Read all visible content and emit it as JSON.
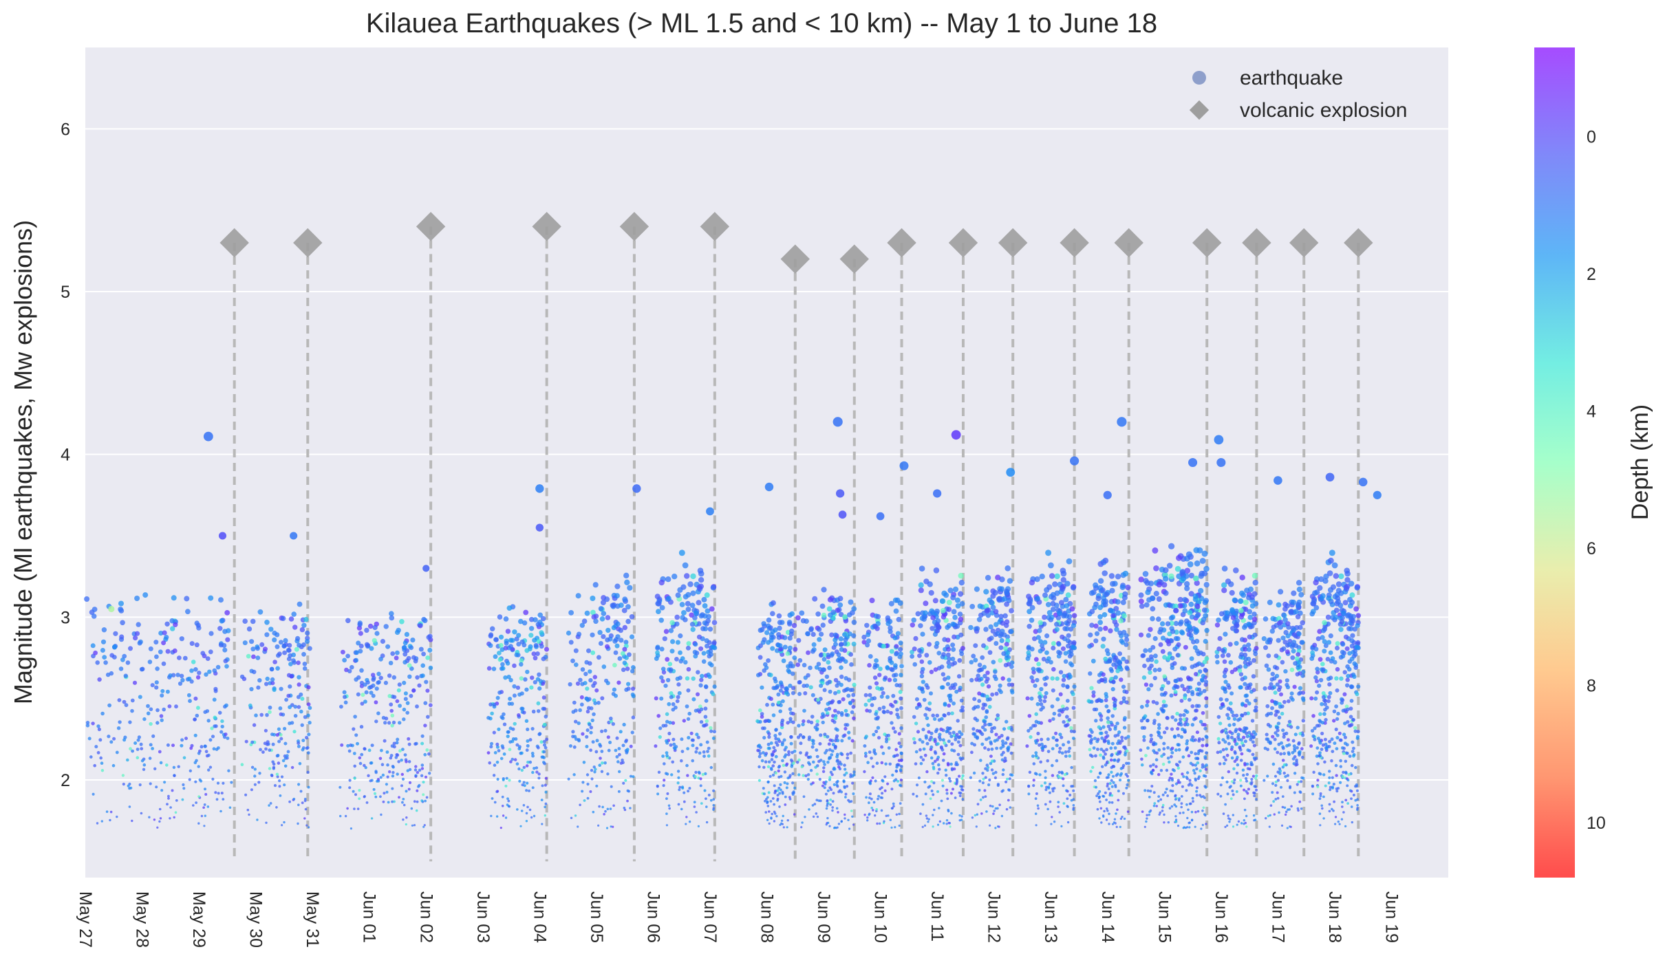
{
  "chart_data": {
    "type": "scatter",
    "title": "Kilauea Earthquakes (> ML 1.5 and < 10 km) -- May 1 to June 18",
    "xlabel": "",
    "ylabel": "Magnitude (Ml earthquakes, Mw explosions)",
    "xlim": [
      "2018-05-27",
      "2018-06-20"
    ],
    "ylim": [
      1.4,
      6.5
    ],
    "x_tick_labels": [
      "May 27",
      "May 28",
      "May 29",
      "May 30",
      "May 31",
      "Jun 01",
      "Jun 02",
      "Jun 03",
      "Jun 04",
      "Jun 05",
      "Jun 06",
      "Jun 07",
      "Jun 08",
      "Jun 09",
      "Jun 10",
      "Jun 11",
      "Jun 12",
      "Jun 13",
      "Jun 14",
      "Jun 15",
      "Jun 16",
      "Jun 17",
      "Jun 18",
      "Jun 19"
    ],
    "y_ticks": [
      2,
      3,
      4,
      5,
      6
    ],
    "grid": true,
    "legend_position": "top-right",
    "legend": [
      {
        "label": "earthquake",
        "marker": "circle"
      },
      {
        "label": "volcanic explosion",
        "marker": "diamond"
      }
    ],
    "colorbar": {
      "label": "Depth (km)",
      "ticks": [
        0,
        2,
        4,
        6,
        8,
        10
      ],
      "range": [
        -1.3,
        10.8
      ],
      "reversed": true,
      "colormap": "rainbow"
    },
    "explosions": [
      {
        "x": "2018-05-29 15:00",
        "mag": 5.3
      },
      {
        "x": "2018-05-30 22:00",
        "mag": 5.3
      },
      {
        "x": "2018-06-02 02:00",
        "mag": 5.4
      },
      {
        "x": "2018-06-04 03:00",
        "mag": 5.4
      },
      {
        "x": "2018-06-05 16:00",
        "mag": 5.4
      },
      {
        "x": "2018-06-07 02:00",
        "mag": 5.4
      },
      {
        "x": "2018-06-08 12:00",
        "mag": 5.2
      },
      {
        "x": "2018-06-09 13:00",
        "mag": 5.2
      },
      {
        "x": "2018-06-10 09:00",
        "mag": 5.3
      },
      {
        "x": "2018-06-11 11:00",
        "mag": 5.3
      },
      {
        "x": "2018-06-12 08:00",
        "mag": 5.3
      },
      {
        "x": "2018-06-13 10:00",
        "mag": 5.3
      },
      {
        "x": "2018-06-14 09:00",
        "mag": 5.3
      },
      {
        "x": "2018-06-15 18:00",
        "mag": 5.3
      },
      {
        "x": "2018-06-16 15:00",
        "mag": 5.3
      },
      {
        "x": "2018-06-17 11:00",
        "mag": 5.3
      },
      {
        "x": "2018-06-18 10:00",
        "mag": 5.3
      }
    ],
    "earthquakes": [
      {
        "x": "2018-05-29 04:00",
        "mag": 4.11,
        "depth": 0.9
      },
      {
        "x": "2018-05-29 10:00",
        "mag": 3.5,
        "depth": 0.1
      },
      {
        "x": "2018-05-30 16:00",
        "mag": 3.5,
        "depth": 1.0
      },
      {
        "x": "2018-05-27 11:00",
        "mag": 3.05,
        "depth": 5.5
      },
      {
        "x": "2018-06-02 00:00",
        "mag": 3.3,
        "depth": 0.5
      },
      {
        "x": "2018-06-04 00:00",
        "mag": 3.79,
        "depth": 1.2
      },
      {
        "x": "2018-06-05 17:00",
        "mag": 3.79,
        "depth": 0.7
      },
      {
        "x": "2018-06-04 00:00",
        "mag": 3.55,
        "depth": 0.3
      },
      {
        "x": "2018-06-07 00:00",
        "mag": 3.65,
        "depth": 1.2
      },
      {
        "x": "2018-06-08 01:00",
        "mag": 3.8,
        "depth": 1.1
      },
      {
        "x": "2018-06-09 06:00",
        "mag": 4.2,
        "depth": 0.9
      },
      {
        "x": "2018-06-09 07:00",
        "mag": 3.76,
        "depth": 0.3
      },
      {
        "x": "2018-06-09 08:00",
        "mag": 3.63,
        "depth": 0.2
      },
      {
        "x": "2018-06-10 10:00",
        "mag": 3.93,
        "depth": 1.0
      },
      {
        "x": "2018-06-10 00:00",
        "mag": 3.62,
        "depth": 0.8
      },
      {
        "x": "2018-06-11 08:00",
        "mag": 4.12,
        "depth": -0.3
      },
      {
        "x": "2018-06-11 00:00",
        "mag": 3.76,
        "depth": 0.8
      },
      {
        "x": "2018-06-12 07:00",
        "mag": 3.89,
        "depth": 1.5
      },
      {
        "x": "2018-06-13 10:00",
        "mag": 3.96,
        "depth": 0.9
      },
      {
        "x": "2018-06-14 06:00",
        "mag": 4.2,
        "depth": 1.0
      },
      {
        "x": "2018-06-14 00:00",
        "mag": 3.75,
        "depth": 0.8
      },
      {
        "x": "2018-06-15 12:00",
        "mag": 3.95,
        "depth": 0.9
      },
      {
        "x": "2018-06-15 23:00",
        "mag": 4.09,
        "depth": 1.1
      },
      {
        "x": "2018-06-16 00:00",
        "mag": 3.95,
        "depth": 0.9
      },
      {
        "x": "2018-06-17 00:00",
        "mag": 3.84,
        "depth": 1.0
      },
      {
        "x": "2018-06-17 22:00",
        "mag": 3.86,
        "depth": 0.6
      },
      {
        "x": "2018-06-18 12:00",
        "mag": 3.83,
        "depth": 0.9
      },
      {
        "x": "2018-06-18 18:00",
        "mag": 3.75,
        "depth": 1.1
      }
    ],
    "earthquake_clusters": [
      {
        "x_start": "2018-05-27 00:00",
        "x_end": "2018-05-29 14:00",
        "mag_min": 1.7,
        "mag_max": 3.35,
        "depth": 1.0,
        "count": 320
      },
      {
        "x_start": "2018-05-29 18:00",
        "x_end": "2018-05-30 23:00",
        "mag_min": 1.7,
        "mag_max": 3.25,
        "depth": 1.0,
        "count": 220
      },
      {
        "x_start": "2018-05-31 10:00",
        "x_end": "2018-06-02 02:00",
        "mag_min": 1.7,
        "mag_max": 3.2,
        "depth": 1.0,
        "count": 300
      },
      {
        "x_start": "2018-06-03 02:00",
        "x_end": "2018-06-04 03:00",
        "mag_min": 1.7,
        "mag_max": 3.25,
        "depth": 1.2,
        "count": 260
      },
      {
        "x_start": "2018-06-04 12:00",
        "x_end": "2018-06-05 16:00",
        "mag_min": 1.7,
        "mag_max": 3.45,
        "depth": 1.1,
        "count": 240
      },
      {
        "x_start": "2018-06-06 01:00",
        "x_end": "2018-06-07 02:00",
        "mag_min": 1.7,
        "mag_max": 3.6,
        "depth": 1.1,
        "count": 300
      },
      {
        "x_start": "2018-06-07 20:00",
        "x_end": "2018-06-08 12:00",
        "mag_min": 1.7,
        "mag_max": 3.3,
        "depth": 1.0,
        "count": 280
      },
      {
        "x_start": "2018-06-08 13:00",
        "x_end": "2018-06-09 13:00",
        "mag_min": 1.7,
        "mag_max": 3.35,
        "depth": 1.0,
        "count": 380
      },
      {
        "x_start": "2018-06-09 17:00",
        "x_end": "2018-06-10 09:00",
        "mag_min": 1.7,
        "mag_max": 3.3,
        "depth": 1.0,
        "count": 230
      },
      {
        "x_start": "2018-06-10 13:00",
        "x_end": "2018-06-11 11:00",
        "mag_min": 1.7,
        "mag_max": 3.5,
        "depth": 1.0,
        "count": 340
      },
      {
        "x_start": "2018-06-11 14:00",
        "x_end": "2018-06-12 08:00",
        "mag_min": 1.7,
        "mag_max": 3.5,
        "depth": 1.0,
        "count": 280
      },
      {
        "x_start": "2018-06-12 14:00",
        "x_end": "2018-06-13 10:00",
        "mag_min": 1.7,
        "mag_max": 3.6,
        "depth": 1.0,
        "count": 330
      },
      {
        "x_start": "2018-06-13 16:00",
        "x_end": "2018-06-14 09:00",
        "mag_min": 1.7,
        "mag_max": 3.6,
        "depth": 1.0,
        "count": 340
      },
      {
        "x_start": "2018-06-14 14:00",
        "x_end": "2018-06-15 18:00",
        "mag_min": 1.7,
        "mag_max": 3.65,
        "depth": 1.0,
        "count": 560
      },
      {
        "x_start": "2018-06-15 22:00",
        "x_end": "2018-06-16 15:00",
        "mag_min": 1.7,
        "mag_max": 3.5,
        "depth": 1.0,
        "count": 330
      },
      {
        "x_start": "2018-06-16 18:00",
        "x_end": "2018-06-17 11:00",
        "mag_min": 1.7,
        "mag_max": 3.4,
        "depth": 1.0,
        "count": 280
      },
      {
        "x_start": "2018-06-17 14:00",
        "x_end": "2018-06-18 10:00",
        "mag_min": 1.7,
        "mag_max": 3.6,
        "depth": 1.0,
        "count": 380
      }
    ],
    "colors": {
      "plot_background": "#eaeaf2",
      "grid": "#ffffff",
      "explosion_marker": "#9e9e9e",
      "explosion_line": "#b8b8b8",
      "legend_earthquake": "#8497c6",
      "text": "#262626"
    }
  }
}
